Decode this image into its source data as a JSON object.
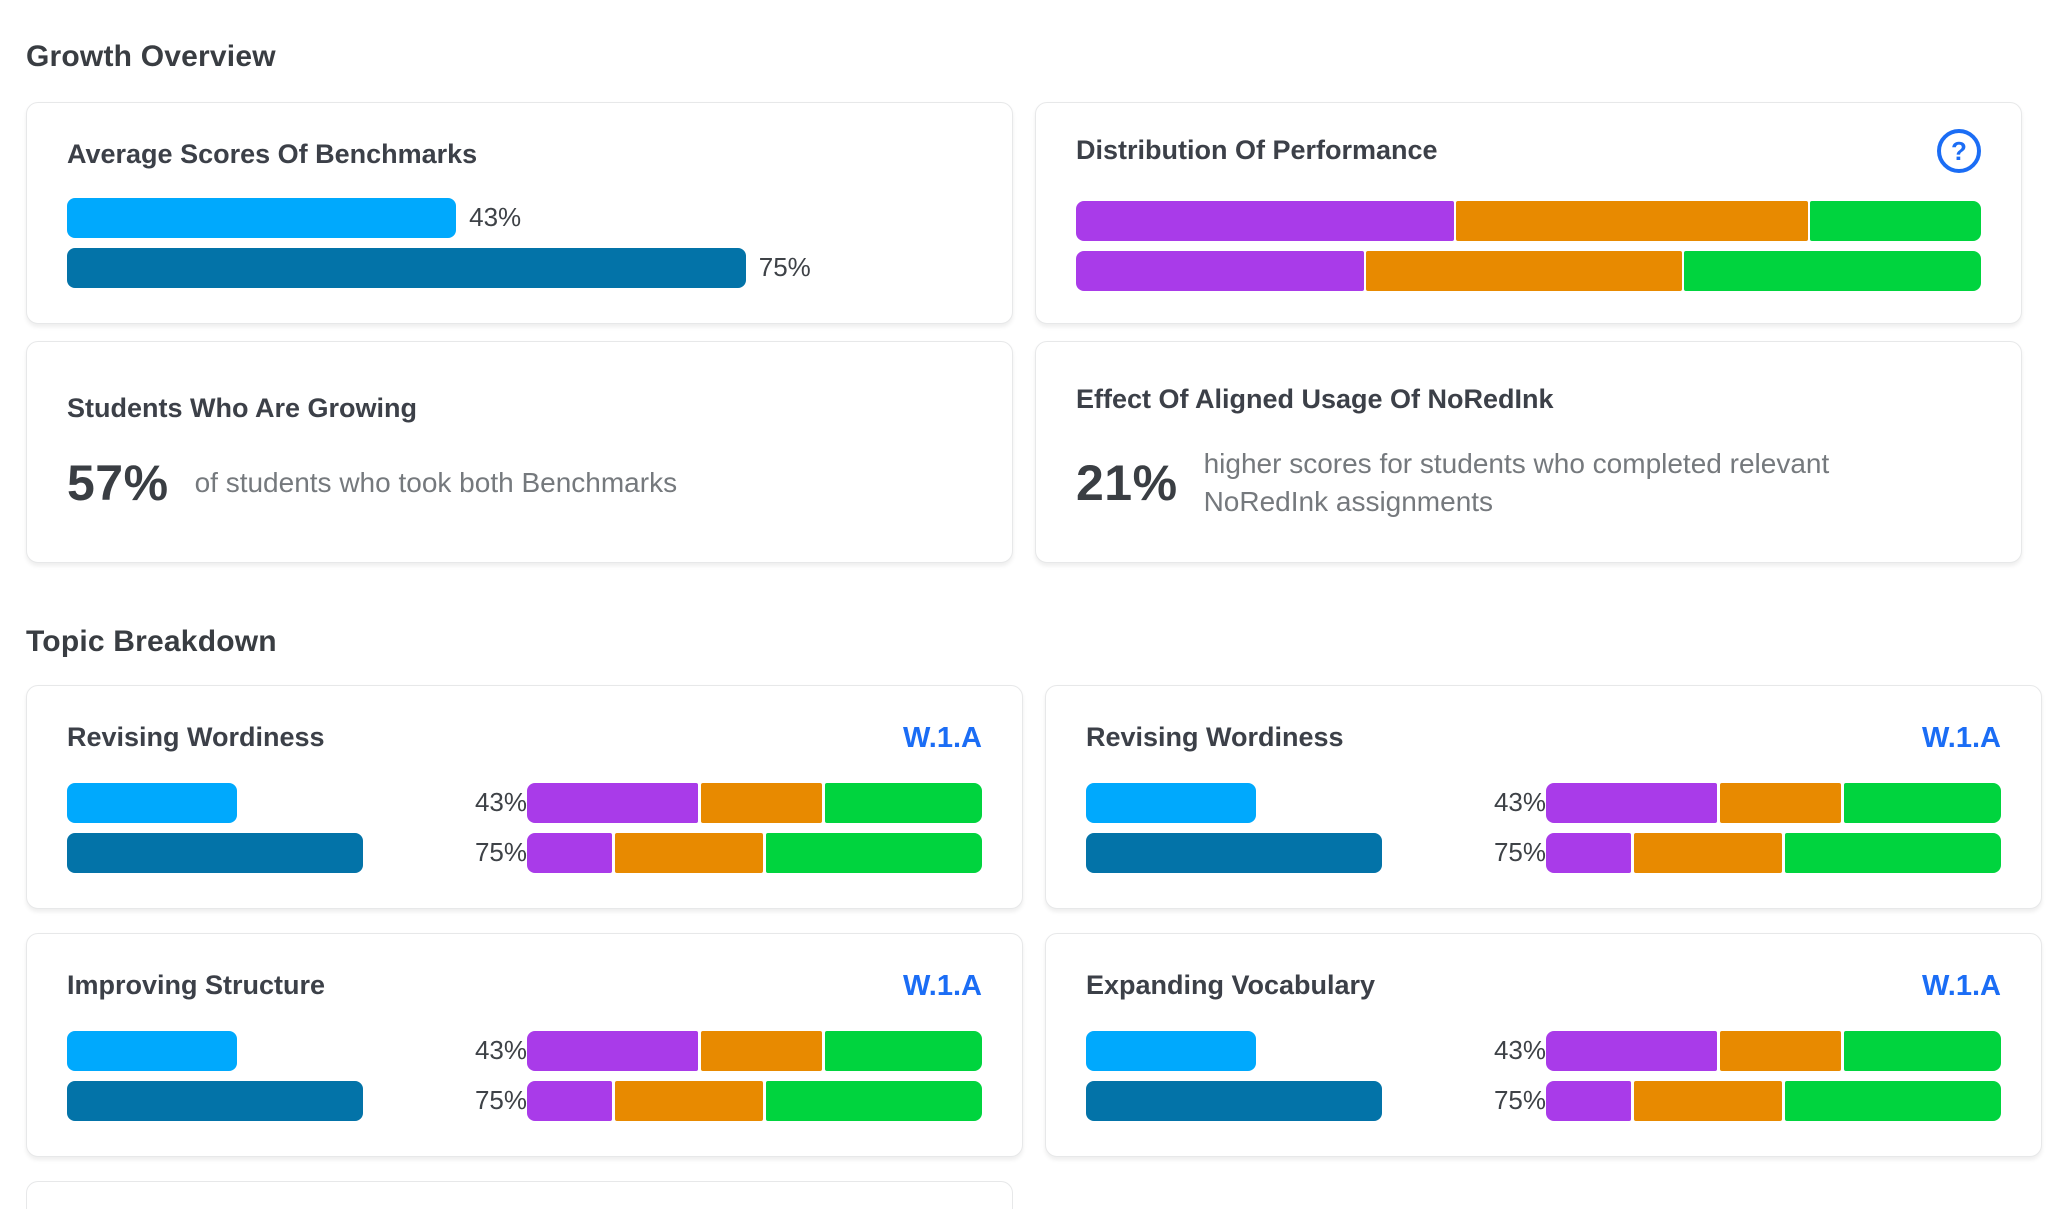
{
  "colors": {
    "benchmark1_blue": "#00A9FD",
    "benchmark2_blue": "#0373A8",
    "segment_purple": "#A93BE9",
    "segment_orange": "#E88A00",
    "segment_green": "#00D43E",
    "link_blue": "#1B6DF5",
    "text_dark": "#3C4048",
    "text_gray": "#75797D"
  },
  "growth_overview": {
    "heading": "Growth Overview",
    "average_scores": {
      "title": "Average Scores Of Benchmarks",
      "bars": [
        {
          "value": 43,
          "label": "43%"
        },
        {
          "value": 75,
          "label": "75%"
        }
      ]
    },
    "distribution_of_performance": {
      "title": "Distribution Of Performance",
      "help_icon": "?",
      "rows": [
        {
          "segments": [
            42,
            39,
            19
          ]
        },
        {
          "segments": [
            32,
            35,
            33
          ]
        }
      ]
    },
    "students_growing": {
      "title": "Students Who Are Growing",
      "stat": "57%",
      "description": "of students who took both Benchmarks"
    },
    "aligned_usage": {
      "title": "Effect Of Aligned Usage Of NoRedInk",
      "stat": "21%",
      "description": "higher scores for students who completed relevant NoRedInk assignments"
    }
  },
  "topic_breakdown": {
    "heading": "Topic Breakdown",
    "cards": [
      {
        "title": "Revising Wordiness",
        "standard": "W.1.A",
        "benchmarks": [
          {
            "value": 43,
            "label": "43%"
          },
          {
            "value": 75,
            "label": "75%"
          }
        ],
        "distribution": [
          {
            "segments": [
              38,
              27,
              35
            ]
          },
          {
            "segments": [
              19,
              33,
              48
            ]
          }
        ]
      },
      {
        "title": "Revising Wordiness",
        "standard": "W.1.A",
        "benchmarks": [
          {
            "value": 43,
            "label": "43%"
          },
          {
            "value": 75,
            "label": "75%"
          }
        ],
        "distribution": [
          {
            "segments": [
              38,
              27,
              35
            ]
          },
          {
            "segments": [
              19,
              33,
              48
            ]
          }
        ]
      },
      {
        "title": "Improving Structure",
        "standard": "W.1.A",
        "benchmarks": [
          {
            "value": 43,
            "label": "43%"
          },
          {
            "value": 75,
            "label": "75%"
          }
        ],
        "distribution": [
          {
            "segments": [
              38,
              27,
              35
            ]
          },
          {
            "segments": [
              19,
              33,
              48
            ]
          }
        ]
      },
      {
        "title": "Expanding Vocabulary",
        "standard": "W.1.A",
        "benchmarks": [
          {
            "value": 43,
            "label": "43%"
          },
          {
            "value": 75,
            "label": "75%"
          }
        ],
        "distribution": [
          {
            "segments": [
              38,
              27,
              35
            ]
          },
          {
            "segments": [
              19,
              33,
              48
            ]
          }
        ]
      }
    ]
  },
  "chart_data": [
    {
      "type": "bar",
      "title": "Average Scores Of Benchmarks",
      "categories": [
        "Benchmark 1",
        "Benchmark 2"
      ],
      "values": [
        43,
        75
      ],
      "unit": "%",
      "xlim": [
        0,
        100
      ]
    },
    {
      "type": "bar",
      "subtype": "stacked-horizontal",
      "title": "Distribution Of Performance",
      "categories": [
        "Row 1",
        "Row 2"
      ],
      "series": [
        {
          "name": "purple",
          "values": [
            42,
            32
          ]
        },
        {
          "name": "orange",
          "values": [
            39,
            35
          ]
        },
        {
          "name": "green",
          "values": [
            19,
            33
          ]
        }
      ],
      "unit": "%"
    },
    {
      "type": "bar",
      "title": "Topic benchmark scores (all four topic cards)",
      "categories": [
        "Benchmark 1",
        "Benchmark 2"
      ],
      "values": [
        43,
        75
      ],
      "unit": "%"
    },
    {
      "type": "bar",
      "subtype": "stacked-horizontal",
      "title": "Topic distribution (all four topic cards)",
      "categories": [
        "Row 1",
        "Row 2"
      ],
      "series": [
        {
          "name": "purple",
          "values": [
            38,
            19
          ]
        },
        {
          "name": "orange",
          "values": [
            27,
            33
          ]
        },
        {
          "name": "green",
          "values": [
            35,
            48
          ]
        }
      ],
      "unit": "%"
    }
  ]
}
